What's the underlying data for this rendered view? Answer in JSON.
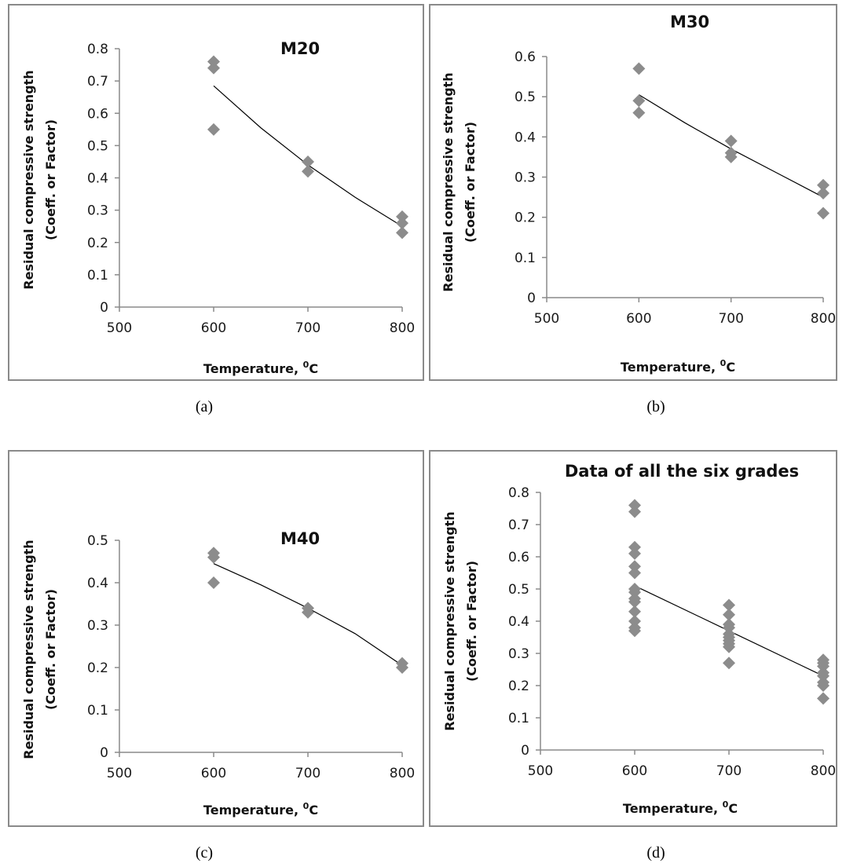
{
  "figure": {
    "captions": [
      "(a)",
      "(b)",
      "(c)",
      "(d)"
    ]
  },
  "colors": {
    "marker": "#8c8c8c",
    "trend_line": "#000000",
    "axis": "#8a8a8a",
    "border": "#8a8a8a"
  },
  "chart_data": [
    {
      "type": "scatter",
      "title": "M20",
      "xlabel": "Temperature,",
      "xlabel_superscript": "0",
      "xlabel_unit": "C",
      "ylabel": "Residual compressive strength",
      "ylabel_line2": "(Coeff. or Factor)",
      "xlim": [
        500,
        800
      ],
      "ylim": [
        0,
        0.8
      ],
      "xticks": [
        500,
        600,
        700,
        800
      ],
      "yticks": [
        0,
        0.1,
        0.2,
        0.3,
        0.4,
        0.5,
        0.6,
        0.7,
        0.8
      ],
      "grid": false,
      "points": [
        {
          "x": 600,
          "y": 0.76
        },
        {
          "x": 600,
          "y": 0.74
        },
        {
          "x": 600,
          "y": 0.55
        },
        {
          "x": 700,
          "y": 0.45
        },
        {
          "x": 700,
          "y": 0.42
        },
        {
          "x": 800,
          "y": 0.28
        },
        {
          "x": 800,
          "y": 0.26
        },
        {
          "x": 800,
          "y": 0.23
        }
      ],
      "trendline": [
        {
          "x": 600,
          "y": 0.685
        },
        {
          "x": 650,
          "y": 0.555
        },
        {
          "x": 700,
          "y": 0.44
        },
        {
          "x": 750,
          "y": 0.34
        },
        {
          "x": 800,
          "y": 0.25
        }
      ]
    },
    {
      "type": "scatter",
      "title": "M30",
      "xlabel": "Temperature,",
      "xlabel_superscript": "0",
      "xlabel_unit": "C",
      "ylabel": "Residual compressive strength",
      "ylabel_line2": "(Coeff. or Factor)",
      "xlim": [
        500,
        800
      ],
      "ylim": [
        0,
        0.6
      ],
      "xticks": [
        500,
        600,
        700,
        800
      ],
      "yticks": [
        0,
        0.1,
        0.2,
        0.3,
        0.4,
        0.5,
        0.6
      ],
      "grid": false,
      "points": [
        {
          "x": 600,
          "y": 0.57
        },
        {
          "x": 600,
          "y": 0.49
        },
        {
          "x": 600,
          "y": 0.46
        },
        {
          "x": 700,
          "y": 0.39
        },
        {
          "x": 700,
          "y": 0.36
        },
        {
          "x": 700,
          "y": 0.35
        },
        {
          "x": 800,
          "y": 0.28
        },
        {
          "x": 800,
          "y": 0.26
        },
        {
          "x": 800,
          "y": 0.21
        }
      ],
      "trendline": [
        {
          "x": 600,
          "y": 0.505
        },
        {
          "x": 650,
          "y": 0.435
        },
        {
          "x": 700,
          "y": 0.37
        },
        {
          "x": 750,
          "y": 0.31
        },
        {
          "x": 800,
          "y": 0.25
        }
      ]
    },
    {
      "type": "scatter",
      "title": "M40",
      "xlabel": "Temperature,",
      "xlabel_superscript": "0",
      "xlabel_unit": "C",
      "ylabel": "Residual compressive strength",
      "ylabel_line2": "(Coeff. or Factor)",
      "xlim": [
        500,
        800
      ],
      "ylim": [
        0,
        0.5
      ],
      "xticks": [
        500,
        600,
        700,
        800
      ],
      "yticks": [
        0,
        0.1,
        0.2,
        0.3,
        0.4,
        0.5
      ],
      "grid": false,
      "points": [
        {
          "x": 600,
          "y": 0.47
        },
        {
          "x": 600,
          "y": 0.46
        },
        {
          "x": 600,
          "y": 0.4
        },
        {
          "x": 700,
          "y": 0.34
        },
        {
          "x": 700,
          "y": 0.33
        },
        {
          "x": 800,
          "y": 0.21
        },
        {
          "x": 800,
          "y": 0.2
        }
      ],
      "trendline": [
        {
          "x": 600,
          "y": 0.445
        },
        {
          "x": 650,
          "y": 0.395
        },
        {
          "x": 700,
          "y": 0.34
        },
        {
          "x": 750,
          "y": 0.28
        },
        {
          "x": 800,
          "y": 0.205
        }
      ]
    },
    {
      "type": "scatter",
      "title": "Data of all the six grades",
      "xlabel": "Temperature,",
      "xlabel_superscript": "0",
      "xlabel_unit": "C",
      "ylabel": "Residual compressive strength",
      "ylabel_line2": "(Coeff. or Factor)",
      "xlim": [
        500,
        800
      ],
      "ylim": [
        0,
        0.8
      ],
      "xticks": [
        500,
        600,
        700,
        800
      ],
      "yticks": [
        0,
        0.1,
        0.2,
        0.3,
        0.4,
        0.5,
        0.6,
        0.7,
        0.8
      ],
      "grid": false,
      "points": [
        {
          "x": 600,
          "y": 0.76
        },
        {
          "x": 600,
          "y": 0.74
        },
        {
          "x": 600,
          "y": 0.63
        },
        {
          "x": 600,
          "y": 0.61
        },
        {
          "x": 600,
          "y": 0.57
        },
        {
          "x": 600,
          "y": 0.55
        },
        {
          "x": 600,
          "y": 0.5
        },
        {
          "x": 600,
          "y": 0.49
        },
        {
          "x": 600,
          "y": 0.47
        },
        {
          "x": 600,
          "y": 0.46
        },
        {
          "x": 600,
          "y": 0.43
        },
        {
          "x": 600,
          "y": 0.4
        },
        {
          "x": 600,
          "y": 0.38
        },
        {
          "x": 600,
          "y": 0.37
        },
        {
          "x": 700,
          "y": 0.45
        },
        {
          "x": 700,
          "y": 0.42
        },
        {
          "x": 700,
          "y": 0.39
        },
        {
          "x": 700,
          "y": 0.38
        },
        {
          "x": 700,
          "y": 0.36
        },
        {
          "x": 700,
          "y": 0.35
        },
        {
          "x": 700,
          "y": 0.34
        },
        {
          "x": 700,
          "y": 0.33
        },
        {
          "x": 700,
          "y": 0.32
        },
        {
          "x": 700,
          "y": 0.27
        },
        {
          "x": 800,
          "y": 0.28
        },
        {
          "x": 800,
          "y": 0.27
        },
        {
          "x": 800,
          "y": 0.26
        },
        {
          "x": 800,
          "y": 0.24
        },
        {
          "x": 800,
          "y": 0.23
        },
        {
          "x": 800,
          "y": 0.21
        },
        {
          "x": 800,
          "y": 0.2
        },
        {
          "x": 800,
          "y": 0.16
        }
      ],
      "trendline": [
        {
          "x": 600,
          "y": 0.51
        },
        {
          "x": 700,
          "y": 0.37
        },
        {
          "x": 800,
          "y": 0.23
        }
      ]
    }
  ]
}
